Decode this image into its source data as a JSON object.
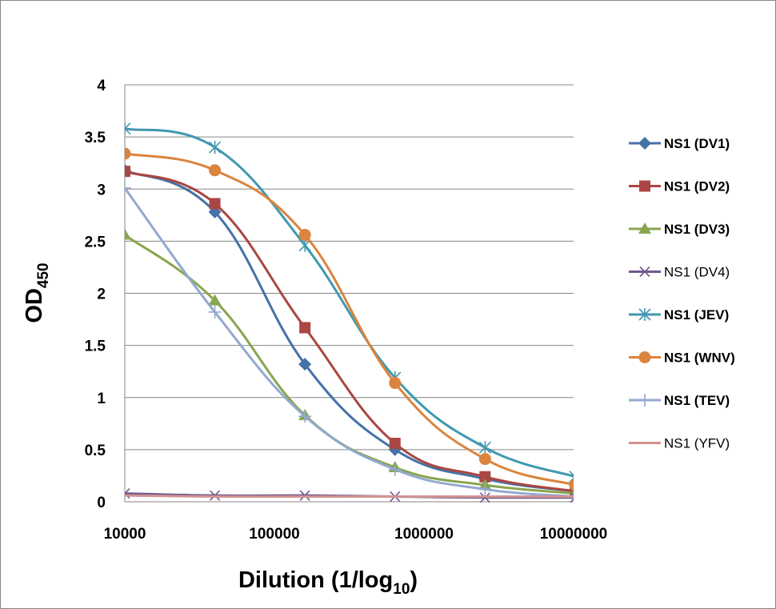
{
  "chart_data": {
    "type": "line",
    "title": "",
    "xlabel": {
      "main": "Dilution (1/log",
      "sub": "10",
      "end": ")"
    },
    "ylabel": {
      "main": "OD",
      "sub": "450"
    },
    "x_scale": "log",
    "xlim": [
      10000,
      10000000
    ],
    "ylim": [
      0,
      4
    ],
    "x_ticks": [
      10000,
      100000,
      1000000,
      10000000
    ],
    "x_tick_labels": [
      "10000",
      "100000",
      "1000000",
      "10000000"
    ],
    "y_ticks": [
      0,
      0.5,
      1,
      1.5,
      2,
      2.5,
      3,
      3.5,
      4
    ],
    "y_tick_labels": [
      "0",
      "0.5",
      "1",
      "1.5",
      "2",
      "2.5",
      "3",
      "3.5",
      "4"
    ],
    "grid": "horizontal",
    "legend_position": "right",
    "series": [
      {
        "name": "NS1 (DV1)",
        "color": "#4572A7",
        "marker": "diamond",
        "bold": true,
        "x": [
          10000,
          40000,
          160000,
          640000,
          2560000,
          10240000
        ],
        "y": [
          3.18,
          2.78,
          1.32,
          0.5,
          0.22,
          0.1
        ]
      },
      {
        "name": "NS1 (DV2)",
        "color": "#AA4643",
        "marker": "square",
        "bold": true,
        "x": [
          10000,
          40000,
          160000,
          640000,
          2560000,
          10240000
        ],
        "y": [
          3.17,
          2.86,
          1.67,
          0.56,
          0.24,
          0.1
        ]
      },
      {
        "name": "NS1 (DV3)",
        "color": "#89A54E",
        "marker": "triangle",
        "bold": true,
        "x": [
          10000,
          40000,
          160000,
          640000,
          2560000,
          10240000
        ],
        "y": [
          2.56,
          1.93,
          0.83,
          0.33,
          0.16,
          0.08
        ]
      },
      {
        "name": "NS1 (DV4)",
        "color": "#71588F",
        "marker": "x",
        "bold": false,
        "x": [
          10000,
          40000,
          160000,
          640000,
          2560000,
          10240000
        ],
        "y": [
          0.08,
          0.06,
          0.06,
          0.05,
          0.04,
          0.04
        ]
      },
      {
        "name": "NS1 (JEV)",
        "color": "#4198AF",
        "marker": "asterisk",
        "bold": true,
        "x": [
          10000,
          40000,
          160000,
          640000,
          2560000,
          10240000
        ],
        "y": [
          3.58,
          3.4,
          2.46,
          1.19,
          0.52,
          0.24
        ]
      },
      {
        "name": "NS1 (WNV)",
        "color": "#DB843D",
        "marker": "circle",
        "bold": true,
        "x": [
          10000,
          40000,
          160000,
          640000,
          2560000,
          10240000
        ],
        "y": [
          3.34,
          3.18,
          2.56,
          1.14,
          0.41,
          0.16
        ]
      },
      {
        "name": "NS1 (TEV)",
        "color": "#93A9CF",
        "marker": "plus",
        "bold": true,
        "x": [
          10000,
          40000,
          160000,
          640000,
          2560000,
          10240000
        ],
        "y": [
          3.01,
          1.82,
          0.82,
          0.31,
          0.12,
          0.05
        ]
      },
      {
        "name": "NS1 (YFV)",
        "color": "#D19392",
        "marker": "none",
        "bold": false,
        "x": [
          10000,
          40000,
          160000,
          640000,
          2560000,
          10240000
        ],
        "y": [
          0.06,
          0.05,
          0.05,
          0.05,
          0.05,
          0.05
        ]
      }
    ]
  }
}
